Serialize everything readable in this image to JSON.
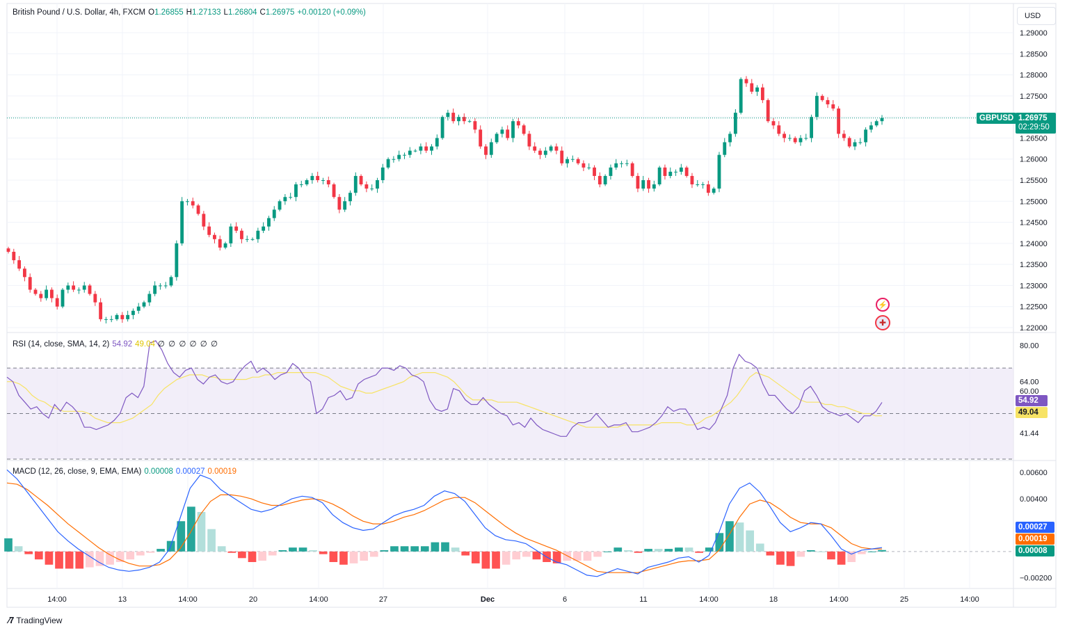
{
  "symbol": {
    "title": "British Pound / U.S. Dollar, 4h, FXCM",
    "open_label": "O",
    "open": "1.26855",
    "high_label": "H",
    "high": "1.27133",
    "low_label": "L",
    "low": "1.26804",
    "close_label": "C",
    "close": "1.26975",
    "change": "+0.00120 (+0.09%)",
    "ticker": "GBPUSD",
    "last_price": "1.26975",
    "countdown": "02:29:50",
    "currency": "USD"
  },
  "colors": {
    "up": "#089981",
    "down": "#f23645",
    "rsi_line": "#7e57c2",
    "rsi_sma": "#f7e365",
    "rsi_band": "#ede7f6",
    "macd_line": "#2962ff",
    "signal_line": "#ff6d00"
  },
  "price_axis": [
    "1.29000",
    "1.28500",
    "1.28000",
    "1.27500",
    "1.27000",
    "1.26500",
    "1.26000",
    "1.25500",
    "1.25000",
    "1.24500",
    "1.24000",
    "1.23500",
    "1.23000",
    "1.22500",
    "1.22000"
  ],
  "rsi": {
    "title": "RSI (14, close, SMA, 14, 2)",
    "value": "54.92",
    "sma_value": "49.04",
    "zeros": "∅ ∅ ∅ ∅ ∅ ∅",
    "axis": [
      "80.00",
      "64.00",
      "60.00",
      "41.44"
    ]
  },
  "macd": {
    "title": "MACD (12, 26, close, 9, EMA, EMA)",
    "hist_value": "0.00008",
    "macd_value": "0.00027",
    "signal_value": "0.00019",
    "axis": [
      "0.00600",
      "0.00400",
      "0.00200",
      "−0.00200"
    ]
  },
  "time_axis": [
    "14:00",
    "13",
    "14:00",
    "20",
    "14:00",
    "27",
    "Dec",
    "6",
    "11",
    "14:00",
    "18",
    "14:00",
    "25",
    "14:00"
  ],
  "footer": {
    "brand": "TradingView"
  },
  "chart_data": [
    {
      "type": "candlestick",
      "series_name": "GBPUSD",
      "ylim": [
        1.22,
        1.29
      ],
      "y_ticks": [
        1.22,
        1.225,
        1.23,
        1.235,
        1.24,
        1.245,
        1.25,
        1.255,
        1.26,
        1.265,
        1.27,
        1.275,
        1.28,
        1.285,
        1.29
      ],
      "close_path": [
        1.238,
        1.236,
        1.234,
        1.232,
        1.229,
        1.228,
        1.227,
        1.229,
        1.227,
        1.225,
        1.229,
        1.23,
        1.229,
        1.229,
        1.23,
        1.228,
        1.226,
        1.222,
        1.222,
        1.222,
        1.223,
        1.222,
        1.223,
        1.224,
        1.225,
        1.226,
        1.228,
        1.23,
        1.23,
        1.23,
        1.232,
        1.24,
        1.25,
        1.25,
        1.249,
        1.247,
        1.244,
        1.242,
        1.241,
        1.239,
        1.24,
        1.244,
        1.243,
        1.241,
        1.241,
        1.241,
        1.243,
        1.244,
        1.246,
        1.248,
        1.25,
        1.251,
        1.251,
        1.254,
        1.254,
        1.255,
        1.256,
        1.255,
        1.255,
        1.254,
        1.251,
        1.248,
        1.25,
        1.252,
        1.256,
        1.254,
        1.253,
        1.253,
        1.255,
        1.258,
        1.26,
        1.26,
        1.261,
        1.261,
        1.262,
        1.262,
        1.263,
        1.262,
        1.263,
        1.265,
        1.27,
        1.271,
        1.269,
        1.27,
        1.269,
        1.269,
        1.267,
        1.263,
        1.261,
        1.264,
        1.266,
        1.267,
        1.265,
        1.269,
        1.268,
        1.266,
        1.263,
        1.262,
        1.261,
        1.262,
        1.263,
        1.262,
        1.259,
        1.26,
        1.26,
        1.259,
        1.258,
        1.258,
        1.256,
        1.254,
        1.256,
        1.258,
        1.259,
        1.259,
        1.259,
        1.256,
        1.253,
        1.255,
        1.253,
        1.254,
        1.258,
        1.256,
        1.257,
        1.257,
        1.258,
        1.256,
        1.254,
        1.254,
        1.254,
        1.252,
        1.253,
        1.261,
        1.264,
        1.266,
        1.271,
        1.279,
        1.278,
        1.276,
        1.277,
        1.274,
        1.269,
        1.268,
        1.266,
        1.265,
        1.265,
        1.264,
        1.265,
        1.265,
        1.27,
        1.275,
        1.274,
        1.273,
        1.272,
        1.266,
        1.265,
        1.263,
        1.264,
        1.264,
        1.267,
        1.268,
        1.269,
        1.26975
      ],
      "last_price": 1.26975
    },
    {
      "type": "line",
      "title": "RSI (14, close, SMA, 14, 2)",
      "ylim": [
        30,
        85
      ],
      "bands": [
        70,
        50,
        30
      ],
      "series": [
        {
          "name": "RSI",
          "values": [
            66,
            64,
            58,
            55,
            52,
            53,
            50,
            48,
            54,
            51,
            55,
            53,
            50,
            44,
            44,
            43,
            44,
            45,
            47,
            50,
            57,
            59,
            57,
            62,
            81,
            82,
            78,
            72,
            68,
            66,
            69,
            70,
            65,
            63,
            66,
            67,
            64,
            63,
            64,
            68,
            71,
            73,
            68,
            70,
            68,
            65,
            67,
            68,
            72,
            70,
            66,
            64,
            50,
            52,
            57,
            58,
            60,
            56,
            57,
            63,
            65,
            66,
            67,
            70,
            70,
            69,
            71,
            70,
            67,
            66,
            64,
            56,
            52,
            51,
            52,
            61,
            60,
            56,
            54,
            54,
            57,
            54,
            52,
            50,
            49,
            45,
            46,
            44,
            48,
            45,
            43,
            42,
            41,
            40,
            40,
            44,
            46,
            46,
            47,
            50,
            47,
            44,
            45,
            45,
            46,
            42,
            42,
            43,
            44,
            46,
            49,
            53,
            51,
            52,
            52,
            48,
            43,
            44,
            43,
            46,
            52,
            58,
            70,
            76,
            73,
            72,
            70,
            63,
            58,
            58,
            55,
            52,
            50,
            53,
            60,
            62,
            58,
            53,
            51,
            50,
            49,
            50,
            48,
            46,
            49,
            49,
            51,
            54.92
          ]
        },
        {
          "name": "SMA",
          "values": [
            64,
            64,
            63,
            61,
            58,
            56,
            55,
            53,
            52,
            51,
            51,
            51,
            51,
            50,
            48,
            47,
            46,
            46,
            46,
            47,
            48,
            50,
            52,
            54,
            58,
            61,
            63,
            65,
            66,
            67,
            67,
            67,
            66,
            66,
            65,
            65,
            65,
            65,
            65,
            66,
            66,
            67,
            67,
            68,
            68,
            68,
            68,
            68,
            68,
            68,
            67,
            66,
            64,
            62,
            61,
            60,
            60,
            59,
            59,
            60,
            61,
            62,
            63,
            64,
            66,
            67,
            68,
            68,
            68,
            67,
            66,
            64,
            61,
            58,
            56,
            56,
            56,
            56,
            55,
            55,
            55,
            55,
            54,
            53,
            52,
            51,
            50,
            49,
            48,
            47,
            46,
            45,
            44,
            44,
            44,
            44,
            44,
            44,
            45,
            45,
            45,
            45,
            45,
            45,
            46,
            46,
            46,
            46,
            45,
            45,
            46,
            48,
            49,
            51,
            53,
            55,
            58,
            62,
            66,
            68,
            67,
            66,
            64,
            62,
            60,
            58,
            56,
            55,
            55,
            55,
            54,
            54,
            53,
            53,
            52,
            51,
            50,
            50,
            49,
            49.04
          ]
        }
      ]
    },
    {
      "type": "bar+line",
      "title": "MACD (12, 26, close, 9, EMA, EMA)",
      "ylim": [
        -0.0027,
        0.0068
      ],
      "series": [
        {
          "name": "MACD",
          "values": [
            0.0062,
            0.0055,
            0.0045,
            0.0035,
            0.0025,
            0.0015,
            0.0008,
            0.0002,
            -0.0003,
            -0.0008,
            -0.0012,
            -0.0014,
            -0.0015,
            -0.0014,
            -0.0012,
            -0.0008,
            0.0002,
            0.0025,
            0.0048,
            0.0058,
            0.0055,
            0.0047,
            0.0042,
            0.0037,
            0.0032,
            0.003,
            0.0032,
            0.0036,
            0.004,
            0.0042,
            0.0041,
            0.0037,
            0.0028,
            0.0022,
            0.0018,
            0.0016,
            0.0017,
            0.0022,
            0.0027,
            0.003,
            0.0032,
            0.0035,
            0.0042,
            0.0046,
            0.0044,
            0.0038,
            0.0028,
            0.0018,
            0.0012,
            0.0009,
            0.0008,
            0.0006,
            0.0001,
            -0.0004,
            -0.0008,
            -0.001,
            -0.0014,
            -0.0018,
            -0.0019,
            -0.0016,
            -0.0013,
            -0.0015,
            -0.0017,
            -0.0012,
            -0.001,
            -0.0008,
            -0.0005,
            -0.0004,
            -0.0008,
            -0.0003,
            0.0015,
            0.0036,
            0.0048,
            0.0052,
            0.0045,
            0.0034,
            0.0022,
            0.0015,
            0.0018,
            0.0022,
            0.0021,
            0.0012,
            0.0002,
            -0.0002,
            0.0001,
            0.0002,
            0.0003
          ]
        },
        {
          "name": "Signal",
          "values": [
            0.0052,
            0.0051,
            0.0047,
            0.0041,
            0.0035,
            0.0028,
            0.0021,
            0.0015,
            0.0009,
            0.0003,
            -0.0002,
            -0.0006,
            -0.0009,
            -0.0011,
            -0.0011,
            -0.001,
            -0.0006,
            0.0002,
            0.0014,
            0.0028,
            0.0038,
            0.0043,
            0.0043,
            0.0042,
            0.004,
            0.0037,
            0.0035,
            0.0035,
            0.0037,
            0.0039,
            0.004,
            0.0039,
            0.0036,
            0.0032,
            0.0027,
            0.0023,
            0.0021,
            0.0021,
            0.0023,
            0.0026,
            0.0028,
            0.0031,
            0.0035,
            0.0039,
            0.0041,
            0.0041,
            0.0037,
            0.0031,
            0.0025,
            0.0019,
            0.0014,
            0.001,
            0.0007,
            0.0004,
            0.0001,
            -0.0003,
            -0.0007,
            -0.0011,
            -0.0015,
            -0.0016,
            -0.0016,
            -0.0016,
            -0.0016,
            -0.0014,
            -0.0012,
            -0.001,
            -0.0008,
            -0.0007,
            -0.0007,
            -0.0006,
            0.0001,
            0.0013,
            0.0026,
            0.0036,
            0.0039,
            0.0037,
            0.0032,
            0.0026,
            0.0022,
            0.0021,
            0.0021,
            0.0018,
            0.0012,
            0.0006,
            0.0003,
            0.0002,
            0.00019
          ]
        }
      ]
    }
  ]
}
